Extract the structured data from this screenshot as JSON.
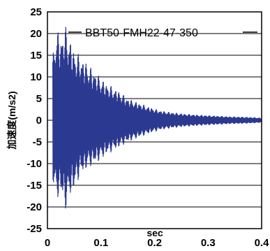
{
  "chart_data": {
    "type": "line",
    "title": "",
    "xlabel": "sec",
    "ylabel": "加速度(m/s2)",
    "xlim": [
      0,
      0.4
    ],
    "ylim": [
      -25,
      25
    ],
    "x_ticks": [
      "0",
      "0.1",
      "0.2",
      "0.3",
      "0.4"
    ],
    "y_ticks": [
      "25",
      "20",
      "15",
      "10",
      "5",
      "0",
      "-5",
      "-10",
      "-15",
      "-20",
      "-25"
    ],
    "grid": "horizontal",
    "legend_position": "top-right",
    "series": [
      {
        "name": "BBT50-FMH22-47-350",
        "color": "#2b3990",
        "style": "dense oscillation, decaying envelope",
        "x": [
          0.01,
          0.017,
          0.025,
          0.033,
          0.04,
          0.05,
          0.06,
          0.075,
          0.09,
          0.11,
          0.13,
          0.15,
          0.17,
          0.19,
          0.21,
          0.23,
          0.25,
          0.28,
          0.31,
          0.34,
          0.37,
          0.4
        ],
        "upper": [
          15.0,
          21.5,
          19.0,
          22.0,
          19.5,
          16.0,
          15.0,
          13.0,
          11.0,
          8.5,
          7.0,
          5.0,
          4.0,
          3.0,
          2.2,
          1.8,
          1.5,
          1.2,
          1.0,
          0.8,
          0.7,
          0.5
        ],
        "lower": [
          -14.0,
          -18.5,
          -17.0,
          -21.0,
          -18.0,
          -16.0,
          -13.0,
          -11.0,
          -10.0,
          -8.0,
          -6.5,
          -5.0,
          -4.0,
          -3.0,
          -2.2,
          -1.8,
          -1.5,
          -1.2,
          -1.0,
          -0.8,
          -0.7,
          -0.5
        ]
      }
    ]
  }
}
